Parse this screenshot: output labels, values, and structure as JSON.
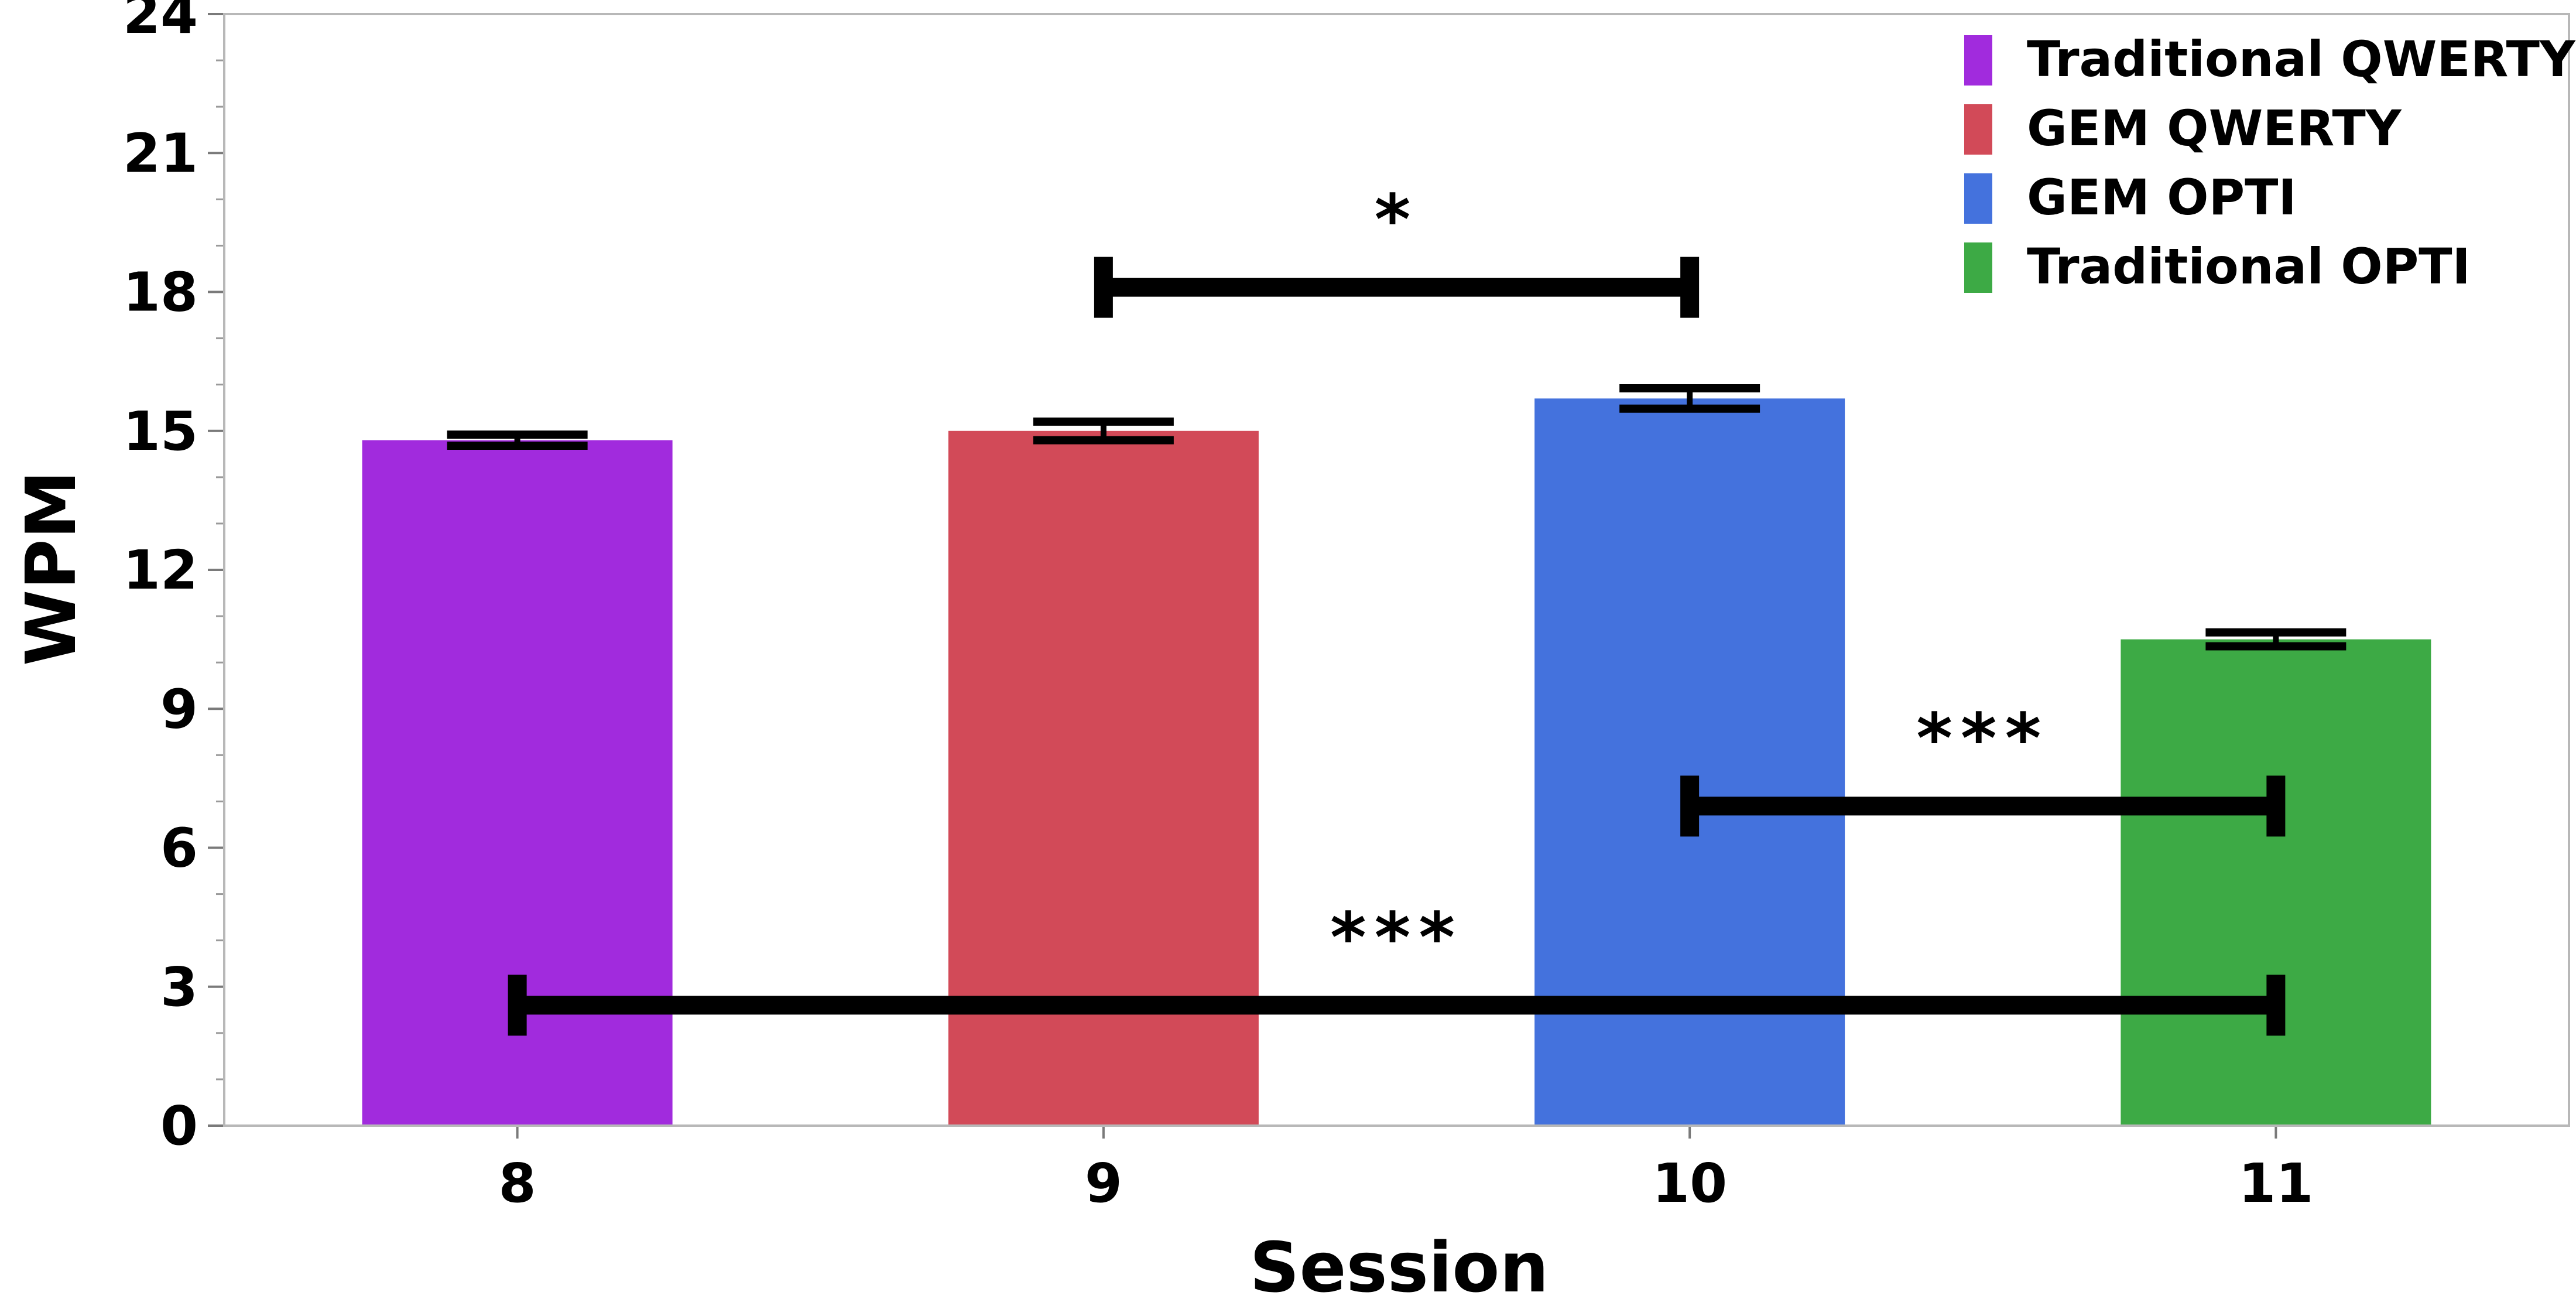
{
  "chart_data": {
    "type": "bar",
    "title": "",
    "xlabel": "Session",
    "ylabel": "WPM",
    "categories": [
      "8",
      "9",
      "10",
      "11"
    ],
    "values": [
      14.8,
      15.0,
      15.7,
      10.5
    ],
    "errors": [
      0.12,
      0.2,
      0.22,
      0.15
    ],
    "series_names": [
      "Traditional QWERTY",
      "GEM QWERTY",
      "GEM OPTI",
      "Traditional OPTI"
    ],
    "colors": [
      "#a12bdd",
      "#d24a58",
      "#4472dd",
      "#3daa45"
    ],
    "ylim": [
      0,
      24
    ],
    "yticks": [
      "0",
      "3",
      "6",
      "9",
      "12",
      "15",
      "18",
      "21",
      "24"
    ],
    "grid": false,
    "legend_position": "top-right",
    "significance": [
      {
        "from": "9",
        "to": "10",
        "y": 18.1,
        "label": "*"
      },
      {
        "from": "10",
        "to": "11",
        "y": 6.9,
        "label": "***"
      },
      {
        "from": "8",
        "to": "11",
        "y": 2.6,
        "label": "***"
      }
    ]
  }
}
